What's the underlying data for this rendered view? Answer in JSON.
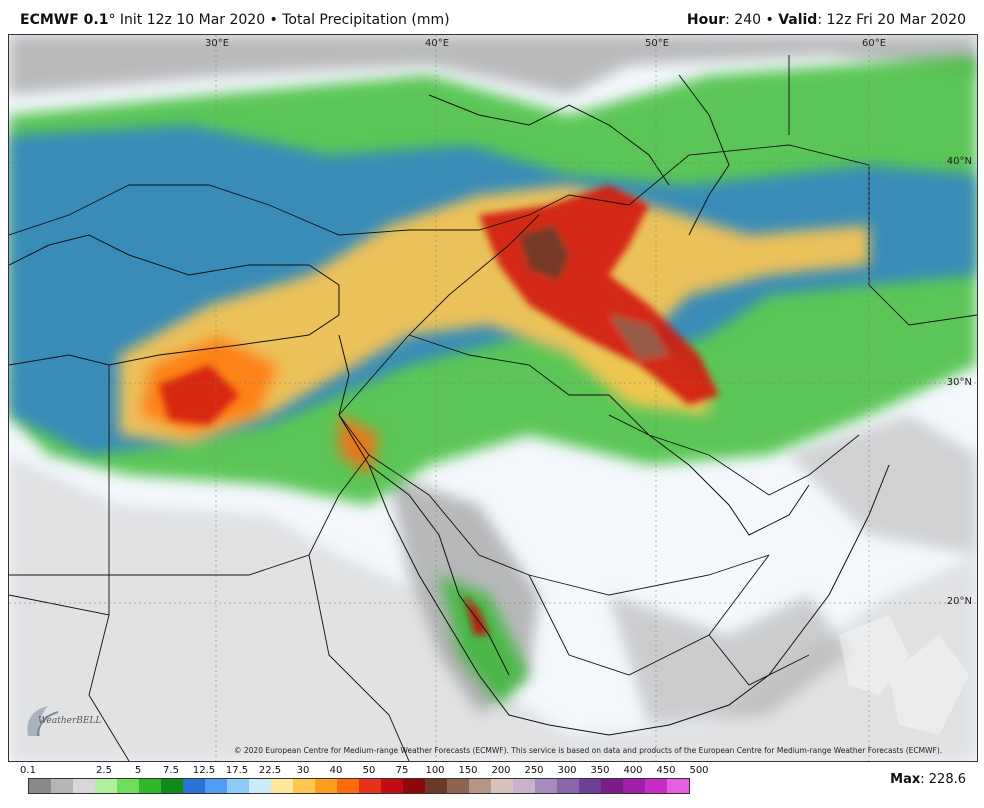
{
  "header": {
    "model": "ECMWF 0.1",
    "degree": "°",
    "init": " Init 12z 10 Mar 2020 • Total Precipitation (mm)",
    "hour_label": "Hour",
    "hour_value": ": 240 • ",
    "valid_label": "Valid",
    "valid_value": ": 12z Fri 20 Mar 2020"
  },
  "map": {
    "lon_labels": [
      "30°E",
      "40°E",
      "50°E",
      "60°E"
    ],
    "lat_labels": [
      "40°N",
      "30°N",
      "20°N"
    ],
    "copyright": "© 2020 European Centre for Medium-range Weather Forecasts (ECMWF). This service is based on data and products of the European Centre for Medium-range Weather Forecasts (ECMWF).",
    "logo_text": "WeatherBELL"
  },
  "colorbar": {
    "ticks": [
      "0.1",
      "2.5",
      "5",
      "7.5",
      "12.5",
      "17.5",
      "22.5",
      "30",
      "40",
      "50",
      "75",
      "100",
      "150",
      "200",
      "250",
      "300",
      "350",
      "400",
      "450",
      "500"
    ],
    "colors": [
      "#8a8a8a",
      "#b5b5b5",
      "#d8d8d8",
      "#aef0a0",
      "#6edc5c",
      "#2fb82a",
      "#118a1b",
      "#2a72d8",
      "#4f9cf0",
      "#8ccbf6",
      "#c9ecf8",
      "#ffe89a",
      "#ffc650",
      "#ff9d1c",
      "#ff6a10",
      "#e8311a",
      "#c00d12",
      "#8e0a0a",
      "#6b3b2a",
      "#8f6552",
      "#b89486",
      "#d9c2bb",
      "#c9b3cc",
      "#a68bbd",
      "#8b65aa",
      "#6e3f94",
      "#7a1d8a",
      "#a01ea8",
      "#c92bc6",
      "#e65ee0"
    ]
  },
  "max": {
    "label": "Max",
    "value": ": 228.6"
  }
}
